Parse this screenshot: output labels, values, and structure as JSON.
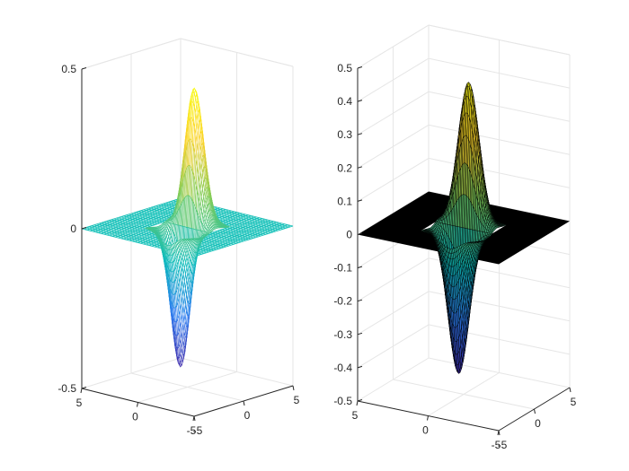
{
  "figure": {
    "background": "#ffffff"
  },
  "chart_data": [
    {
      "type": "surface",
      "name": "mesh-plot",
      "style": "mesh",
      "function": "z = x * exp(-x^2 - y^2)",
      "grid": true,
      "zlim": [
        -0.5,
        0.5
      ],
      "xlim": [
        -5,
        5
      ],
      "ylim": [
        -5,
        5
      ],
      "ztick_labels": [
        "-0.5",
        "0",
        "0.5"
      ],
      "xtick_labels": [
        "-5",
        "0",
        "5"
      ],
      "ytick_labels": [
        "5",
        "0",
        "-5"
      ],
      "peak": 0.4289,
      "trough": -0.4289,
      "colormap": [
        "#3e26a8",
        "#2d7cf0",
        "#0ebdbb",
        "#7ccc5a",
        "#fbd12b",
        "#f9fb15"
      ],
      "edge_color": "colormap",
      "face_color": "#ffffff"
    },
    {
      "type": "surface",
      "name": "surf-plot",
      "style": "surf",
      "function": "z = x * exp(-x^2 - y^2)",
      "grid": true,
      "zlim": [
        -0.5,
        0.5
      ],
      "xlim": [
        -5,
        5
      ],
      "ylim": [
        -5,
        5
      ],
      "ztick_labels": [
        "-0.5",
        "-0.4",
        "-0.3",
        "-0.2",
        "-0.1",
        "0",
        "0.1",
        "0.2",
        "0.3",
        "0.4",
        "0.5"
      ],
      "xtick_labels": [
        "-5",
        "0",
        "5"
      ],
      "ytick_labels": [
        "5",
        "0",
        "-5"
      ],
      "peak": 0.4289,
      "trough": -0.4289,
      "colormap": [
        "#3e26a8",
        "#2d7cf0",
        "#0ebdbb",
        "#7ccc5a",
        "#fbd12b",
        "#f9fb15"
      ],
      "edge_color": "#000000"
    }
  ]
}
